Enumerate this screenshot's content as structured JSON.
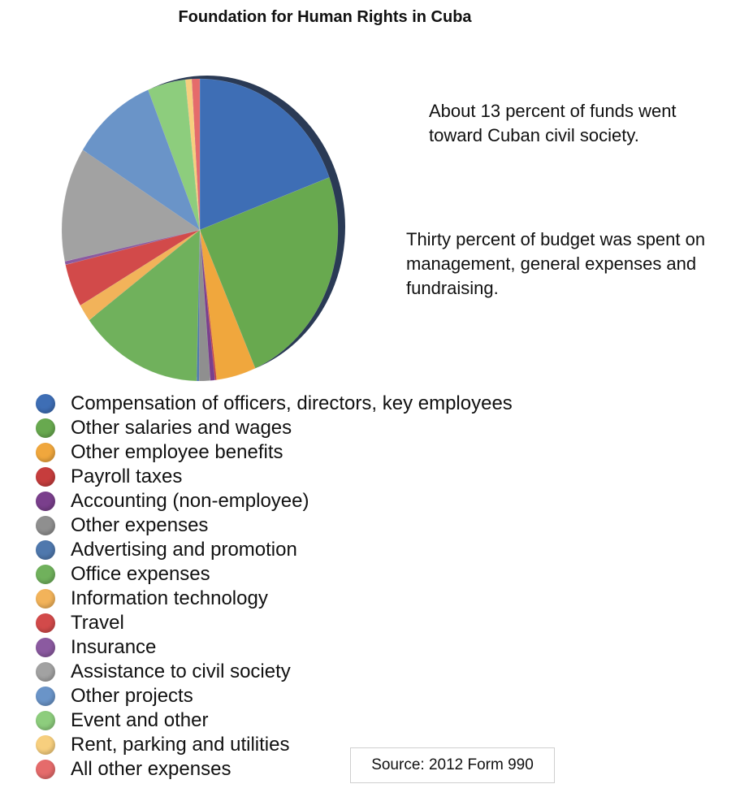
{
  "chart_data": {
    "type": "pie",
    "title": "Foundation for Human Rights in Cuba",
    "unit": "percent of total (estimated)",
    "slices": [
      {
        "label": "Compensation of officers, directors, key employees",
        "value": 20.9,
        "color": "#3e6eb5"
      },
      {
        "label": "Other salaries and wages",
        "value": 26.0,
        "color": "#68a94f"
      },
      {
        "label": "Other employee benefits",
        "value": 5.0,
        "color": "#f0a73d"
      },
      {
        "label": "Payroll taxes",
        "value": 0.2,
        "color": "#c63d3d"
      },
      {
        "label": "Accounting (non-employee)",
        "value": 0.6,
        "color": "#7a3f8c"
      },
      {
        "label": "Other expenses",
        "value": 1.4,
        "color": "#8f8f8f"
      },
      {
        "label": "Advertising and promotion",
        "value": 0.3,
        "color": "#4f78ad"
      },
      {
        "label": "Office expenses",
        "value": 15.6,
        "color": "#70b15c"
      },
      {
        "label": "Information technology",
        "value": 2.0,
        "color": "#f2b35a"
      },
      {
        "label": "Travel",
        "value": 5.0,
        "color": "#d24a4a"
      },
      {
        "label": "Insurance",
        "value": 0.4,
        "color": "#8b5aa0"
      },
      {
        "label": "Assistance to civil society",
        "value": 13.2,
        "color": "#a2a2a2"
      },
      {
        "label": "Other projects",
        "value": 10.8,
        "color": "#6a94c8"
      },
      {
        "label": "Event and other",
        "value": 4.8,
        "color": "#8dcd7d"
      },
      {
        "label": "Rent, parking and utilities",
        "value": 0.8,
        "color": "#f7cf7e"
      },
      {
        "label": "All other expenses",
        "value": 1.0,
        "color": "#e56b6b"
      }
    ]
  },
  "notes": {
    "civil_society": "About 13 percent of funds went toward Cuban civil society.",
    "management": "Thirty percent of budget was spent on management, general expenses and fundraising."
  },
  "source": "Source: 2012 Form 990"
}
